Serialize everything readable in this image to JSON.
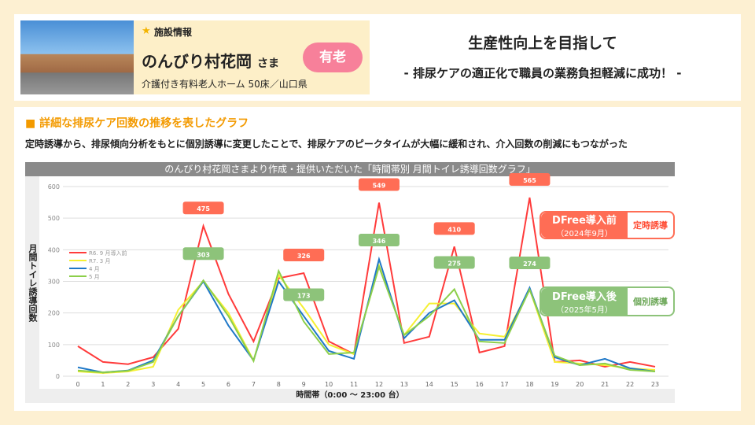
{
  "facility": {
    "section": "施設情報",
    "name": "のんびり村花岡",
    "honorific": "さま",
    "badge": "有老",
    "description": "介護付き有料老人ホーム 50床／山口県"
  },
  "headline": {
    "title": "生産性向上を目指して",
    "subtitle": "- 排尿ケアの適正化で職員の業務負担軽減に成功！ -"
  },
  "section": {
    "title": "■ 詳細な排尿ケア回数の推移を表したグラフ",
    "description": "定時誘導から、排尿傾向分析をもとに個別誘導に変更したことで、排尿ケアのピークタイムが大幅に緩和され、介入回数の削減にもつながった"
  },
  "callouts": {
    "before": {
      "title": "DFree導入前",
      "date": "（2024年9月）",
      "note": "定時誘導",
      "color": "#ff6d55"
    },
    "after": {
      "title": "DFree導入後",
      "date": "（2025年5月）",
      "note": "個別誘導",
      "color": "#8dc37a"
    }
  },
  "chart_data": {
    "type": "line",
    "title": "のんびり村花岡さまより作成・提供いただいた「時間帯別 月間トイレ誘導回数グラフ」",
    "xlabel": "時間帯（0:00 ～ 23:00 台）",
    "ylabel": "月間トイレ誘導回数",
    "ylim": [
      0,
      600
    ],
    "yticks": [
      0,
      100,
      200,
      300,
      400,
      500,
      600
    ],
    "categories": [
      "0",
      "1",
      "2",
      "3",
      "4",
      "5",
      "6",
      "7",
      "8",
      "9",
      "10",
      "11",
      "12",
      "13",
      "14",
      "15",
      "16",
      "17",
      "18",
      "19",
      "20",
      "21",
      "22",
      "23"
    ],
    "grid": true,
    "legend": "left",
    "series": [
      {
        "name": "R6. 9 月導入前",
        "color": "#ff3b3b",
        "values": [
          95,
          45,
          38,
          60,
          150,
          475,
          260,
          110,
          310,
          326,
          110,
          70,
          549,
          105,
          125,
          410,
          75,
          95,
          565,
          45,
          50,
          30,
          45,
          30
        ],
        "labels": {
          "5": 475,
          "9": 326,
          "12": 549,
          "15": 410,
          "18": 565
        }
      },
      {
        "name": "R7. 3 月",
        "color": "#f5f032",
        "values": [
          15,
          10,
          15,
          30,
          210,
          300,
          200,
          50,
          320,
          215,
          100,
          70,
          350,
          130,
          230,
          230,
          135,
          125,
          275,
          45,
          40,
          35,
          25,
          20
        ]
      },
      {
        "name": "4 月",
        "color": "#1f78c8",
        "values": [
          28,
          12,
          18,
          50,
          190,
          300,
          160,
          50,
          300,
          190,
          80,
          55,
          370,
          120,
          200,
          240,
          115,
          115,
          280,
          60,
          35,
          55,
          25,
          15
        ]
      },
      {
        "name": "5 月",
        "color": "#8ccf4a",
        "values": [
          18,
          12,
          17,
          45,
          190,
          303,
          190,
          48,
          333,
          173,
          70,
          75,
          346,
          130,
          190,
          275,
          110,
          105,
          274,
          65,
          35,
          40,
          20,
          15
        ],
        "labels": {
          "5": 303,
          "9": 173,
          "12": 346,
          "15": 275,
          "18": 274
        }
      }
    ]
  }
}
